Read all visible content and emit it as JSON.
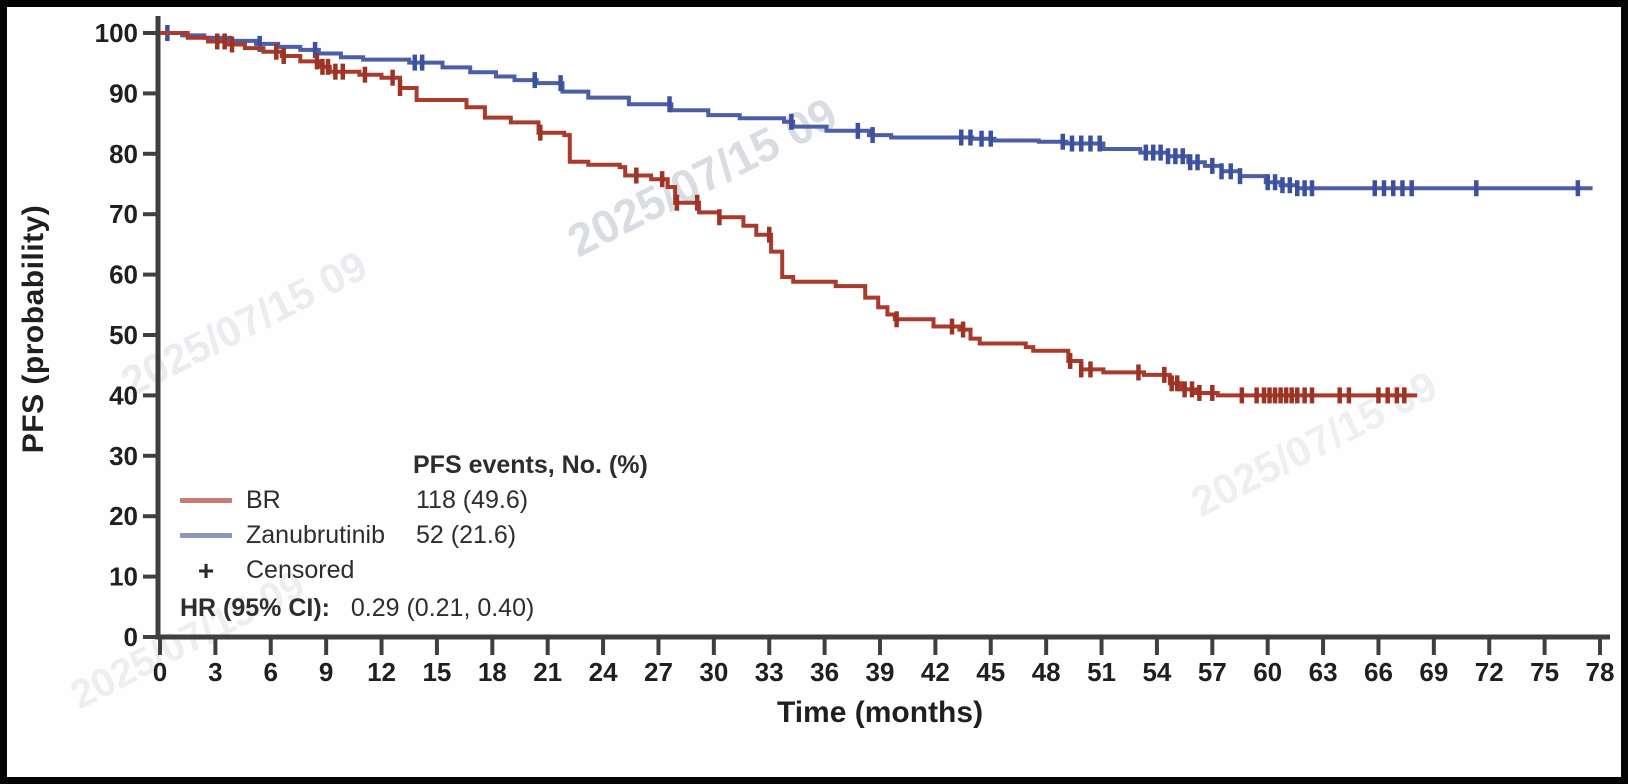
{
  "figure": {
    "y_axis_title": "PFS (probability)",
    "x_axis_title": "Time (months)"
  },
  "legend": {
    "events_header": "PFS events, No. (%)",
    "items": [
      {
        "label": "BR",
        "value": "118 (49.6)",
        "swatch_color": "#cb7a70"
      },
      {
        "label": "Zanubrutinib",
        "value": "52 (21.6)",
        "swatch_color": "#8a95c1"
      }
    ],
    "censored_symbol": "+",
    "censored_label": "Censored",
    "hr_label": "HR (95% CI):",
    "hr_value": "0.29 (0.21, 0.40)"
  },
  "watermarks": [
    "2025/07/15 09",
    "2025/07/15 09",
    "2025/07/15 09",
    "2025/07/15 09"
  ],
  "chart_data": {
    "type": "line",
    "subtype": "kaplan-meier-step",
    "title": "",
    "xlabel": "Time (months)",
    "ylabel": "PFS (probability)",
    "xlim": [
      0,
      78
    ],
    "ylim": [
      0,
      100
    ],
    "grid": false,
    "legend_position": "lower-left",
    "x_ticks": [
      0,
      3,
      6,
      9,
      12,
      15,
      18,
      21,
      24,
      27,
      30,
      33,
      36,
      39,
      42,
      45,
      48,
      51,
      54,
      57,
      60,
      63,
      66,
      69,
      72,
      75,
      78
    ],
    "y_ticks": [
      0,
      10,
      20,
      30,
      40,
      50,
      60,
      70,
      80,
      90,
      100
    ],
    "axis_color": "#3f3f3f",
    "hazard_ratio": "HR (95% CI): 0.29 (0.21, 0.40)",
    "series": [
      {
        "name": "BR",
        "events_no_pct": "118 (49.6)",
        "color": "#a83b2c",
        "censor_color": "#9c3324",
        "points": [
          [
            0,
            100
          ],
          [
            1.5,
            99.2
          ],
          [
            2.6,
            98.6
          ],
          [
            3.6,
            98.1
          ],
          [
            4.6,
            97.5
          ],
          [
            5.6,
            96.9
          ],
          [
            6.6,
            96.2
          ],
          [
            7.6,
            95.3
          ],
          [
            8.6,
            94.4
          ],
          [
            9.2,
            93.6
          ],
          [
            10.8,
            93.1
          ],
          [
            12.0,
            92.6
          ],
          [
            13.0,
            90.9
          ],
          [
            13.9,
            88.9
          ],
          [
            16.6,
            87.7
          ],
          [
            17.6,
            86.0
          ],
          [
            19.0,
            85.2
          ],
          [
            20.5,
            83.5
          ],
          [
            21.9,
            83.1
          ],
          [
            22.2,
            78.7
          ],
          [
            23.2,
            78.2
          ],
          [
            24.9,
            77.8
          ],
          [
            25.2,
            76.4
          ],
          [
            26.6,
            75.8
          ],
          [
            27.5,
            74.5
          ],
          [
            27.9,
            71.9
          ],
          [
            29.2,
            70.3
          ],
          [
            30.3,
            69.5
          ],
          [
            31.6,
            68.1
          ],
          [
            32.3,
            66.6
          ],
          [
            33.1,
            63.8
          ],
          [
            33.7,
            59.6
          ],
          [
            34.3,
            58.8
          ],
          [
            36.6,
            58.1
          ],
          [
            38.2,
            56.2
          ],
          [
            38.9,
            54.6
          ],
          [
            39.4,
            53.4
          ],
          [
            39.8,
            52.6
          ],
          [
            41.9,
            51.4
          ],
          [
            43.3,
            50.9
          ],
          [
            43.9,
            49.4
          ],
          [
            44.4,
            48.6
          ],
          [
            46.9,
            48.0
          ],
          [
            47.3,
            47.4
          ],
          [
            49.2,
            45.7
          ],
          [
            49.9,
            44.3
          ],
          [
            51.1,
            43.8
          ],
          [
            53.3,
            43.4
          ],
          [
            54.7,
            42.0
          ],
          [
            55.3,
            41.0
          ],
          [
            56.1,
            40.4
          ],
          [
            57.3,
            40.0
          ],
          [
            68.1,
            40.0
          ]
        ],
        "censor_times": [
          3.1,
          3.5,
          3.9,
          6.3,
          6.7,
          8.5,
          8.8,
          9.1,
          9.5,
          9.9,
          11.1,
          12.6,
          13.0,
          20.6,
          25.8,
          27.2,
          28.0,
          29.1,
          30.3,
          33.0,
          39.9,
          42.9,
          43.5,
          49.3,
          49.9,
          50.4,
          53.0,
          54.4,
          54.8,
          55.1,
          55.5,
          55.9,
          56.3,
          57.0,
          58.6,
          59.4,
          59.8,
          60.1,
          60.4,
          60.7,
          61.0,
          61.3,
          61.6,
          62.0,
          62.4,
          63.9,
          64.4,
          66.0,
          66.5,
          67.0,
          67.4
        ]
      },
      {
        "name": "Zanubrutinib",
        "events_no_pct": "52 (21.6)",
        "color": "#4c5ea6",
        "censor_color": "#3d509f",
        "points": [
          [
            0,
            100
          ],
          [
            1.2,
            99.6
          ],
          [
            2.4,
            99.2
          ],
          [
            3.8,
            98.7
          ],
          [
            5.2,
            98.2
          ],
          [
            6.4,
            97.7
          ],
          [
            7.6,
            97.2
          ],
          [
            8.6,
            96.6
          ],
          [
            9.8,
            96.0
          ],
          [
            11.0,
            95.6
          ],
          [
            13.5,
            95.1
          ],
          [
            15.3,
            94.3
          ],
          [
            16.8,
            93.5
          ],
          [
            18.2,
            92.8
          ],
          [
            19.2,
            92.2
          ],
          [
            20.4,
            91.7
          ],
          [
            21.8,
            90.3
          ],
          [
            23.2,
            89.3
          ],
          [
            25.4,
            88.2
          ],
          [
            27.7,
            87.2
          ],
          [
            29.7,
            86.4
          ],
          [
            31.4,
            85.9
          ],
          [
            33.8,
            85.3
          ],
          [
            34.3,
            84.5
          ],
          [
            36.1,
            83.8
          ],
          [
            38.4,
            83.1
          ],
          [
            39.6,
            82.7
          ],
          [
            44.0,
            82.5
          ],
          [
            45.2,
            82.2
          ],
          [
            47.6,
            82.0
          ],
          [
            49.1,
            81.7
          ],
          [
            51.1,
            80.8
          ],
          [
            53.1,
            80.2
          ],
          [
            54.6,
            79.6
          ],
          [
            55.7,
            78.6
          ],
          [
            56.6,
            78.0
          ],
          [
            57.5,
            77.1
          ],
          [
            58.5,
            76.3
          ],
          [
            59.9,
            75.3
          ],
          [
            60.7,
            74.8
          ],
          [
            61.6,
            74.3
          ],
          [
            77.6,
            74.3
          ]
        ],
        "censor_times": [
          0.4,
          5.4,
          8.4,
          13.8,
          14.2,
          20.3,
          21.7,
          27.6,
          34.2,
          37.8,
          38.6,
          43.4,
          43.9,
          44.5,
          45.0,
          48.9,
          49.4,
          49.9,
          50.4,
          50.9,
          53.4,
          53.8,
          54.2,
          54.6,
          55.0,
          55.4,
          55.8,
          56.2,
          57.0,
          57.5,
          58.0,
          58.5,
          60.0,
          60.4,
          60.8,
          61.2,
          61.6,
          62.0,
          62.4,
          65.8,
          66.3,
          66.8,
          67.3,
          67.8,
          71.3,
          76.8
        ]
      }
    ]
  }
}
